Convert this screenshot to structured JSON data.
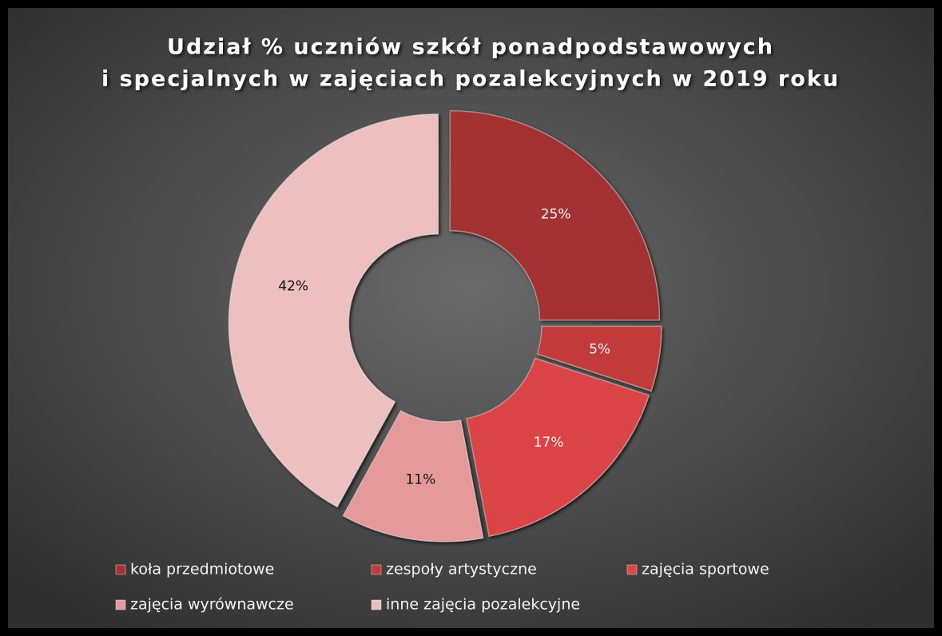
{
  "chart_data": {
    "type": "donut",
    "title": [
      "Udział % uczniów szkół ponadpodstawowych",
      "i specjalnych w zajęciach pozalekcyjnych w 2019  roku"
    ],
    "categories": [
      "koła przedmiotowe",
      "zespoły artystyczne",
      "zajęcia sportowe",
      "zajęcia wyrównawcze",
      "inne zajęcia pozalekcyjne"
    ],
    "values": [
      25,
      5,
      17,
      11,
      42
    ],
    "value_labels": [
      "25%",
      "5%",
      "17%",
      "11%",
      "42%"
    ],
    "colors": [
      "#a53132",
      "#c23a3b",
      "#db4546",
      "#e6999a",
      "#eebfbf"
    ],
    "legend": "bottom"
  }
}
